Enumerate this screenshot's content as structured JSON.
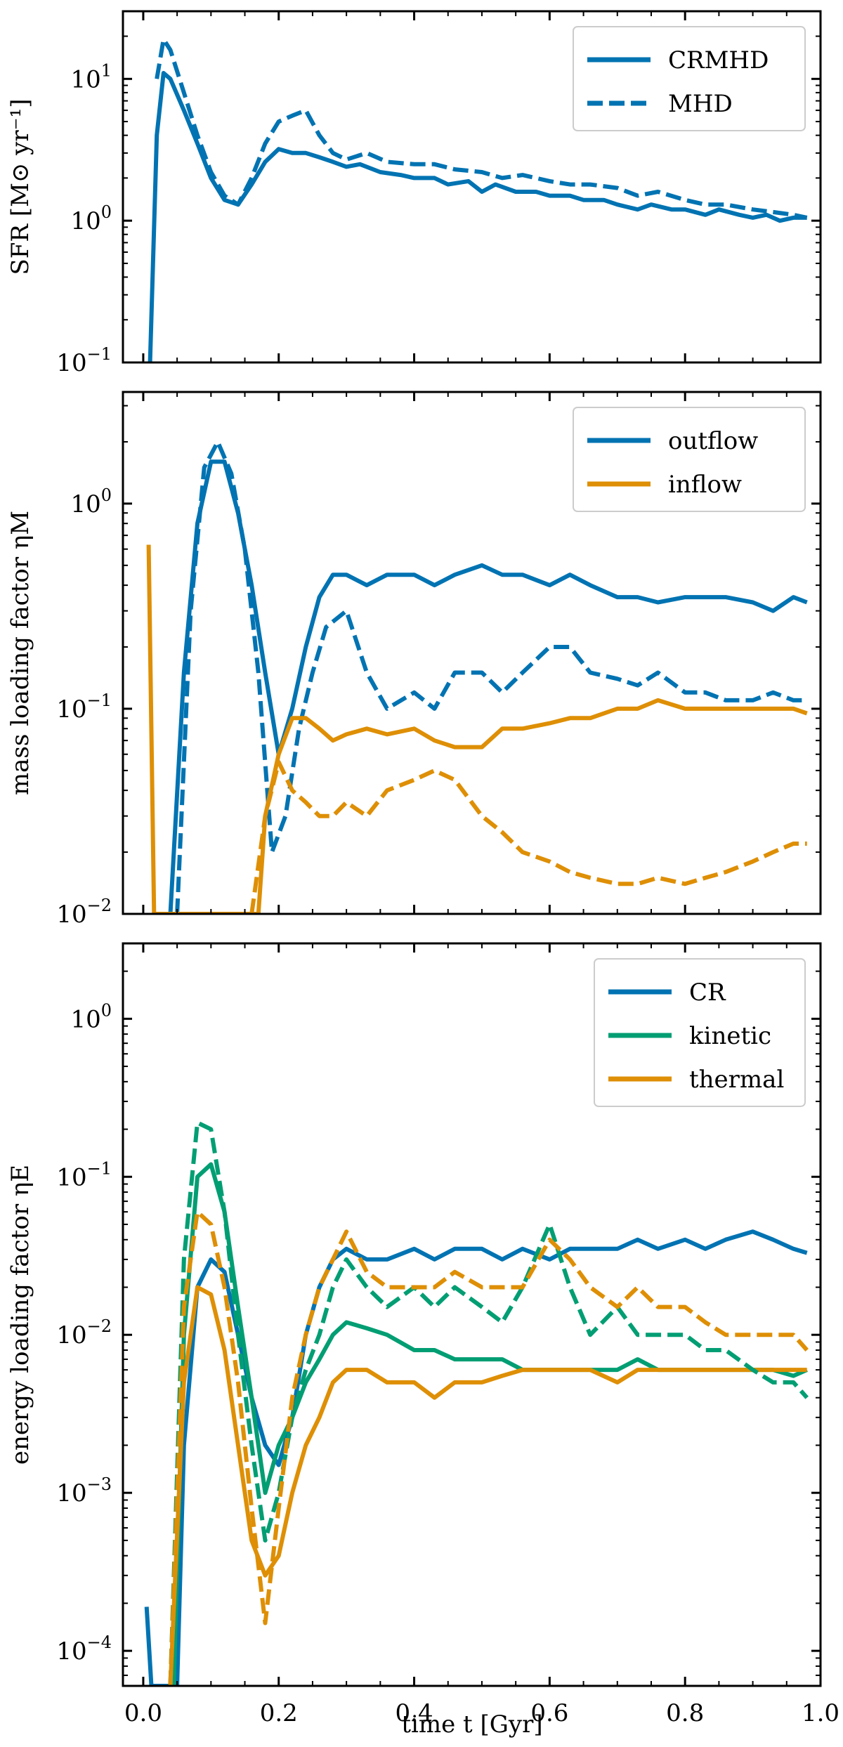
{
  "colors": {
    "blue": "#0173b2",
    "green": "#029e73",
    "orange": "#de8f05"
  },
  "xaxis": {
    "label": "time t [Gyr]",
    "range": [
      -0.03,
      1.0
    ],
    "ticks": [
      0.0,
      0.2,
      0.4,
      0.6,
      0.8,
      1.0
    ],
    "tick_labels": [
      "0.0",
      "0.2",
      "0.4",
      "0.6",
      "0.8",
      "1.0"
    ]
  },
  "chart_data": [
    {
      "type": "line",
      "ylabel": "SFR [M⊙ yr⁻¹]",
      "yscale": "log",
      "ylim": [
        0.1,
        30
      ],
      "yticks": [
        0.1,
        1,
        10
      ],
      "ytick_labels": [
        [
          "10",
          "−1"
        ],
        [
          "10",
          "0"
        ],
        [
          "10",
          "1"
        ]
      ],
      "legend": {
        "position": "upper right",
        "entries": [
          {
            "label": "CRMHD",
            "color": "#0173b2",
            "style": "solid"
          },
          {
            "label": "MHD",
            "color": "#0173b2",
            "style": "dashed"
          }
        ]
      },
      "series": [
        {
          "name": "CRMHD",
          "color": "#0173b2",
          "style": "solid",
          "x": [
            0.01,
            0.02,
            0.03,
            0.04,
            0.06,
            0.08,
            0.1,
            0.12,
            0.14,
            0.16,
            0.18,
            0.2,
            0.22,
            0.24,
            0.26,
            0.28,
            0.3,
            0.32,
            0.35,
            0.38,
            0.4,
            0.43,
            0.45,
            0.48,
            0.5,
            0.52,
            0.55,
            0.58,
            0.6,
            0.63,
            0.65,
            0.68,
            0.7,
            0.73,
            0.75,
            0.78,
            0.8,
            0.83,
            0.85,
            0.88,
            0.9,
            0.92,
            0.94,
            0.96,
            0.98
          ],
          "y": [
            0.1,
            4.0,
            11.0,
            10.0,
            6.0,
            3.5,
            2.0,
            1.4,
            1.3,
            1.8,
            2.6,
            3.2,
            3.0,
            3.0,
            2.8,
            2.6,
            2.4,
            2.5,
            2.2,
            2.1,
            2.0,
            2.0,
            1.8,
            1.9,
            1.6,
            1.8,
            1.6,
            1.6,
            1.5,
            1.5,
            1.4,
            1.4,
            1.3,
            1.2,
            1.3,
            1.2,
            1.2,
            1.1,
            1.2,
            1.1,
            1.05,
            1.1,
            1.0,
            1.05,
            1.05
          ]
        },
        {
          "name": "MHD",
          "color": "#0173b2",
          "style": "dashed",
          "x": [
            0.02,
            0.03,
            0.04,
            0.06,
            0.08,
            0.1,
            0.12,
            0.14,
            0.16,
            0.18,
            0.2,
            0.22,
            0.24,
            0.26,
            0.28,
            0.3,
            0.33,
            0.36,
            0.4,
            0.43,
            0.46,
            0.5,
            0.53,
            0.56,
            0.6,
            0.63,
            0.66,
            0.7,
            0.73,
            0.76,
            0.8,
            0.83,
            0.86,
            0.9,
            0.93,
            0.96,
            0.98
          ],
          "y": [
            10.0,
            19.0,
            16.0,
            8.0,
            4.0,
            2.2,
            1.5,
            1.3,
            2.0,
            3.5,
            5.0,
            5.5,
            6.0,
            4.0,
            3.0,
            2.7,
            3.0,
            2.6,
            2.5,
            2.5,
            2.3,
            2.2,
            2.0,
            2.1,
            1.9,
            1.8,
            1.8,
            1.7,
            1.5,
            1.6,
            1.4,
            1.3,
            1.3,
            1.2,
            1.15,
            1.1,
            1.05
          ]
        }
      ]
    },
    {
      "type": "line",
      "ylabel": "mass loading factor ηM",
      "yscale": "log",
      "ylim": [
        0.01,
        3.5
      ],
      "yticks": [
        0.01,
        0.1,
        1
      ],
      "ytick_labels": [
        [
          "10",
          "−2"
        ],
        [
          "10",
          "−1"
        ],
        [
          "10",
          "0"
        ]
      ],
      "legend": {
        "position": "upper right",
        "entries": [
          {
            "label": "outflow",
            "color": "#0173b2",
            "style": "solid"
          },
          {
            "label": "inflow",
            "color": "#de8f05",
            "style": "solid"
          }
        ]
      },
      "series": [
        {
          "name": "outflow (CRMHD)",
          "color": "#0173b2",
          "style": "solid",
          "x": [
            0.04,
            0.06,
            0.08,
            0.1,
            0.12,
            0.14,
            0.16,
            0.18,
            0.2,
            0.22,
            0.24,
            0.26,
            0.28,
            0.3,
            0.33,
            0.36,
            0.4,
            0.43,
            0.46,
            0.5,
            0.53,
            0.56,
            0.6,
            0.63,
            0.66,
            0.7,
            0.73,
            0.76,
            0.8,
            0.83,
            0.86,
            0.9,
            0.93,
            0.96,
            0.98
          ],
          "y": [
            0.01,
            0.15,
            0.8,
            1.6,
            1.6,
            0.9,
            0.4,
            0.15,
            0.06,
            0.1,
            0.2,
            0.35,
            0.45,
            0.45,
            0.4,
            0.45,
            0.45,
            0.4,
            0.45,
            0.5,
            0.45,
            0.45,
            0.4,
            0.45,
            0.4,
            0.35,
            0.35,
            0.33,
            0.35,
            0.35,
            0.35,
            0.33,
            0.3,
            0.35,
            0.33
          ]
        },
        {
          "name": "outflow (MHD)",
          "color": "#0173b2",
          "style": "dashed",
          "x": [
            0.05,
            0.07,
            0.09,
            0.11,
            0.13,
            0.15,
            0.17,
            0.19,
            0.21,
            0.23,
            0.25,
            0.27,
            0.3,
            0.33,
            0.36,
            0.4,
            0.43,
            0.46,
            0.5,
            0.53,
            0.56,
            0.6,
            0.63,
            0.66,
            0.7,
            0.73,
            0.76,
            0.8,
            0.83,
            0.86,
            0.9,
            0.93,
            0.96,
            0.98
          ],
          "y": [
            0.01,
            0.3,
            1.5,
            2.0,
            1.4,
            0.6,
            0.15,
            0.02,
            0.03,
            0.08,
            0.15,
            0.25,
            0.3,
            0.15,
            0.1,
            0.12,
            0.1,
            0.15,
            0.15,
            0.12,
            0.15,
            0.2,
            0.2,
            0.15,
            0.14,
            0.13,
            0.15,
            0.12,
            0.12,
            0.11,
            0.11,
            0.12,
            0.11,
            0.11
          ]
        },
        {
          "name": "inflow (CRMHD)",
          "color": "#de8f05",
          "style": "solid",
          "x": [
            0.008,
            0.016,
            0.17,
            0.18,
            0.2,
            0.22,
            0.24,
            0.26,
            0.28,
            0.3,
            0.33,
            0.36,
            0.4,
            0.43,
            0.46,
            0.5,
            0.53,
            0.56,
            0.6,
            0.63,
            0.66,
            0.7,
            0.73,
            0.76,
            0.8,
            0.83,
            0.86,
            0.9,
            0.93,
            0.96,
            0.98
          ],
          "y": [
            0.63,
            0.01,
            0.01,
            0.03,
            0.06,
            0.09,
            0.09,
            0.08,
            0.07,
            0.075,
            0.08,
            0.075,
            0.08,
            0.07,
            0.065,
            0.065,
            0.08,
            0.08,
            0.085,
            0.09,
            0.09,
            0.1,
            0.1,
            0.11,
            0.1,
            0.1,
            0.1,
            0.1,
            0.1,
            0.1,
            0.095
          ]
        },
        {
          "name": "inflow (MHD)",
          "color": "#de8f05",
          "style": "dashed",
          "x": [
            0.16,
            0.18,
            0.2,
            0.22,
            0.24,
            0.26,
            0.28,
            0.3,
            0.33,
            0.36,
            0.4,
            0.43,
            0.46,
            0.5,
            0.53,
            0.56,
            0.6,
            0.63,
            0.66,
            0.7,
            0.73,
            0.76,
            0.8,
            0.83,
            0.86,
            0.9,
            0.93,
            0.96,
            0.98
          ],
          "y": [
            0.01,
            0.03,
            0.055,
            0.04,
            0.035,
            0.03,
            0.03,
            0.035,
            0.03,
            0.04,
            0.045,
            0.05,
            0.045,
            0.03,
            0.025,
            0.02,
            0.018,
            0.016,
            0.015,
            0.014,
            0.014,
            0.015,
            0.014,
            0.015,
            0.016,
            0.018,
            0.02,
            0.022,
            0.022
          ]
        }
      ]
    },
    {
      "type": "line",
      "ylabel": "energy loading factor ηE",
      "yscale": "log",
      "ylim": [
        6e-05,
        3.0
      ],
      "yticks": [
        0.0001,
        0.001,
        0.01,
        0.1,
        1
      ],
      "ytick_labels": [
        [
          "10",
          "−4"
        ],
        [
          "10",
          "−3"
        ],
        [
          "10",
          "−2"
        ],
        [
          "10",
          "−1"
        ],
        [
          "10",
          "0"
        ]
      ],
      "legend": {
        "position": "upper right",
        "entries": [
          {
            "label": "CR",
            "color": "#0173b2",
            "style": "solid"
          },
          {
            "label": "kinetic",
            "color": "#029e73",
            "style": "solid"
          },
          {
            "label": "thermal",
            "color": "#de8f05",
            "style": "solid"
          }
        ]
      },
      "series": [
        {
          "name": "CR (CRMHD)",
          "color": "#0173b2",
          "style": "solid",
          "x": [
            0.005,
            0.012,
            0.05,
            0.06,
            0.08,
            0.1,
            0.12,
            0.14,
            0.16,
            0.18,
            0.2,
            0.22,
            0.24,
            0.26,
            0.28,
            0.3,
            0.33,
            0.36,
            0.4,
            0.43,
            0.46,
            0.5,
            0.53,
            0.56,
            0.6,
            0.63,
            0.66,
            0.7,
            0.73,
            0.76,
            0.8,
            0.83,
            0.86,
            0.9,
            0.93,
            0.96,
            0.98
          ],
          "y": [
            0.00019,
            6e-05,
            6e-05,
            0.002,
            0.02,
            0.03,
            0.025,
            0.01,
            0.004,
            0.002,
            0.0015,
            0.003,
            0.01,
            0.02,
            0.03,
            0.035,
            0.03,
            0.03,
            0.035,
            0.03,
            0.035,
            0.035,
            0.03,
            0.035,
            0.03,
            0.035,
            0.035,
            0.035,
            0.04,
            0.035,
            0.04,
            0.035,
            0.04,
            0.045,
            0.04,
            0.035,
            0.033
          ]
        },
        {
          "name": "kinetic (CRMHD)",
          "color": "#029e73",
          "style": "solid",
          "x": [
            0.045,
            0.06,
            0.08,
            0.1,
            0.12,
            0.14,
            0.16,
            0.18,
            0.2,
            0.22,
            0.24,
            0.26,
            0.28,
            0.3,
            0.33,
            0.36,
            0.4,
            0.43,
            0.46,
            0.5,
            0.53,
            0.56,
            0.6,
            0.63,
            0.66,
            0.7,
            0.73,
            0.76,
            0.8,
            0.83,
            0.86,
            0.9,
            0.93,
            0.96,
            0.98
          ],
          "y": [
            6e-05,
            0.01,
            0.1,
            0.12,
            0.06,
            0.015,
            0.004,
            0.001,
            0.002,
            0.003,
            0.005,
            0.007,
            0.01,
            0.012,
            0.011,
            0.01,
            0.008,
            0.008,
            0.007,
            0.007,
            0.007,
            0.006,
            0.006,
            0.006,
            0.006,
            0.006,
            0.007,
            0.006,
            0.006,
            0.006,
            0.006,
            0.006,
            0.006,
            0.0055,
            0.006
          ]
        },
        {
          "name": "thermal (CRMHD)",
          "color": "#de8f05",
          "style": "solid",
          "x": [
            0.04,
            0.06,
            0.08,
            0.1,
            0.12,
            0.14,
            0.16,
            0.18,
            0.2,
            0.22,
            0.24,
            0.26,
            0.28,
            0.3,
            0.33,
            0.36,
            0.4,
            0.43,
            0.46,
            0.5,
            0.53,
            0.56,
            0.6,
            0.63,
            0.66,
            0.7,
            0.73,
            0.76,
            0.8,
            0.83,
            0.86,
            0.9,
            0.93,
            0.96,
            0.98
          ],
          "y": [
            6e-05,
            0.005,
            0.02,
            0.018,
            0.008,
            0.002,
            0.0005,
            0.0003,
            0.0004,
            0.001,
            0.002,
            0.003,
            0.005,
            0.006,
            0.006,
            0.005,
            0.005,
            0.004,
            0.005,
            0.005,
            0.0055,
            0.006,
            0.006,
            0.006,
            0.006,
            0.005,
            0.006,
            0.006,
            0.006,
            0.006,
            0.006,
            0.006,
            0.006,
            0.006,
            0.006
          ]
        },
        {
          "name": "kinetic (MHD)",
          "color": "#029e73",
          "style": "dashed",
          "x": [
            0.04,
            0.06,
            0.08,
            0.1,
            0.12,
            0.14,
            0.16,
            0.18,
            0.2,
            0.22,
            0.24,
            0.26,
            0.28,
            0.3,
            0.33,
            0.36,
            0.4,
            0.43,
            0.46,
            0.5,
            0.53,
            0.56,
            0.6,
            0.63,
            0.66,
            0.7,
            0.73,
            0.76,
            0.8,
            0.83,
            0.86,
            0.9,
            0.93,
            0.96,
            0.98
          ],
          "y": [
            6e-05,
            0.03,
            0.22,
            0.2,
            0.06,
            0.01,
            0.002,
            0.0005,
            0.001,
            0.003,
            0.006,
            0.01,
            0.02,
            0.03,
            0.02,
            0.015,
            0.02,
            0.015,
            0.02,
            0.015,
            0.012,
            0.02,
            0.05,
            0.02,
            0.01,
            0.015,
            0.01,
            0.01,
            0.01,
            0.008,
            0.008,
            0.006,
            0.005,
            0.005,
            0.004
          ]
        },
        {
          "name": "thermal (MHD)",
          "color": "#de8f05",
          "style": "dashed",
          "x": [
            0.04,
            0.06,
            0.08,
            0.1,
            0.12,
            0.14,
            0.16,
            0.18,
            0.2,
            0.22,
            0.24,
            0.26,
            0.28,
            0.3,
            0.33,
            0.36,
            0.4,
            0.43,
            0.46,
            0.5,
            0.53,
            0.56,
            0.6,
            0.63,
            0.66,
            0.7,
            0.73,
            0.76,
            0.8,
            0.83,
            0.86,
            0.9,
            0.93,
            0.96,
            0.98
          ],
          "y": [
            6e-05,
            0.015,
            0.06,
            0.05,
            0.02,
            0.005,
            0.0008,
            0.00015,
            0.0008,
            0.004,
            0.01,
            0.02,
            0.03,
            0.045,
            0.025,
            0.02,
            0.02,
            0.02,
            0.025,
            0.02,
            0.02,
            0.02,
            0.04,
            0.03,
            0.02,
            0.015,
            0.02,
            0.015,
            0.015,
            0.012,
            0.01,
            0.01,
            0.01,
            0.01,
            0.008
          ]
        }
      ]
    }
  ]
}
